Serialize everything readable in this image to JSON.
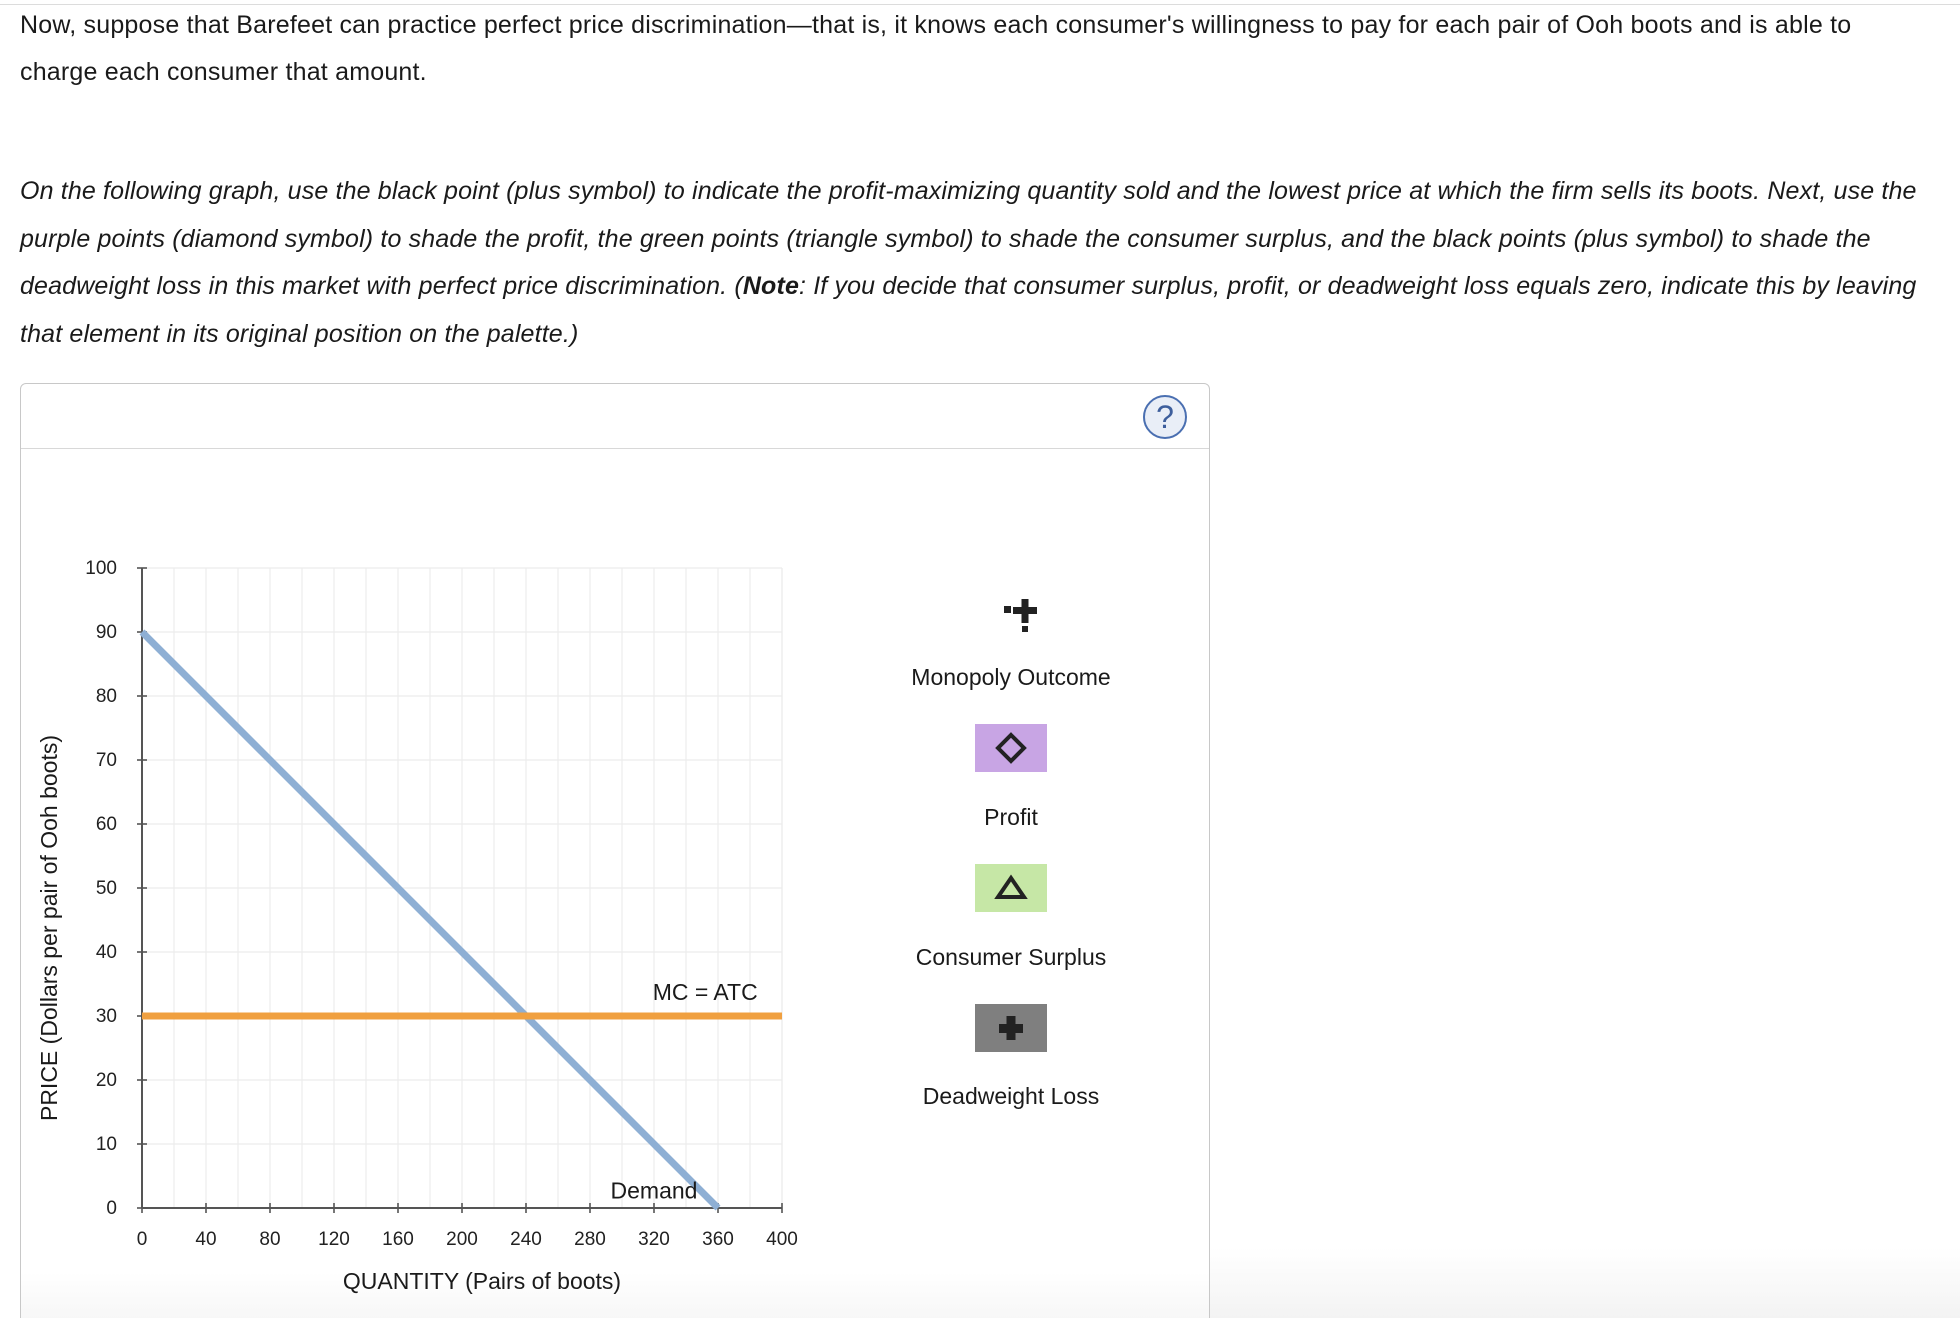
{
  "intro": {
    "text": "Now, suppose that Barefeet can practice perfect price discrimination—that is, it knows each consumer's willingness to pay for each pair of Ooh boots and is able to charge each consumer that amount."
  },
  "instructions": {
    "part1": "On the following graph, use the black point (plus symbol) to indicate the profit-maximizing quantity sold and the lowest price at which the firm sells its boots. Next, use the purple points (diamond symbol) to shade the profit, the green points (triangle symbol) to shade the consumer surplus, and the black points (plus symbol) to shade the deadweight loss in this market with perfect price discrimination. (",
    "note_label": "Note",
    "part2": ": If you decide that consumer surplus, profit, or deadweight loss equals zero, indicate this by leaving that element in its original position on the palette.)"
  },
  "help": {
    "label": "?"
  },
  "chart_data": {
    "type": "line",
    "xlabel": "QUANTITY (Pairs of boots)",
    "ylabel": "PRICE (Dollars per pair of Ooh boots)",
    "xlim": [
      0,
      400
    ],
    "ylim": [
      0,
      100
    ],
    "x_ticks": [
      0,
      40,
      80,
      120,
      160,
      200,
      240,
      280,
      320,
      360,
      400
    ],
    "y_ticks": [
      0,
      10,
      20,
      30,
      40,
      50,
      60,
      70,
      80,
      90,
      100
    ],
    "grid": true,
    "series": [
      {
        "name": "Demand",
        "color": "#8eafd4",
        "points": [
          [
            0,
            90
          ],
          [
            360,
            0
          ]
        ]
      },
      {
        "name": "MC = ATC",
        "color": "#f0a040",
        "points": [
          [
            0,
            30
          ],
          [
            400,
            30
          ]
        ]
      }
    ],
    "annotations": [
      {
        "text": "MC = ATC",
        "x": 352,
        "y": 32.5
      },
      {
        "text": "Demand",
        "x": 320,
        "y": 1.5
      }
    ]
  },
  "palette": {
    "items": [
      {
        "label": "Monopoly Outcome",
        "icon": "plus-point-icon",
        "color": "#000000"
      },
      {
        "label": "Profit",
        "icon": "diamond-icon",
        "color": "#c8a5e4"
      },
      {
        "label": "Consumer Surplus",
        "icon": "triangle-icon",
        "color": "#c6e7a6"
      },
      {
        "label": "Deadweight Loss",
        "icon": "plus-icon",
        "color": "#7f7f7f"
      }
    ]
  }
}
